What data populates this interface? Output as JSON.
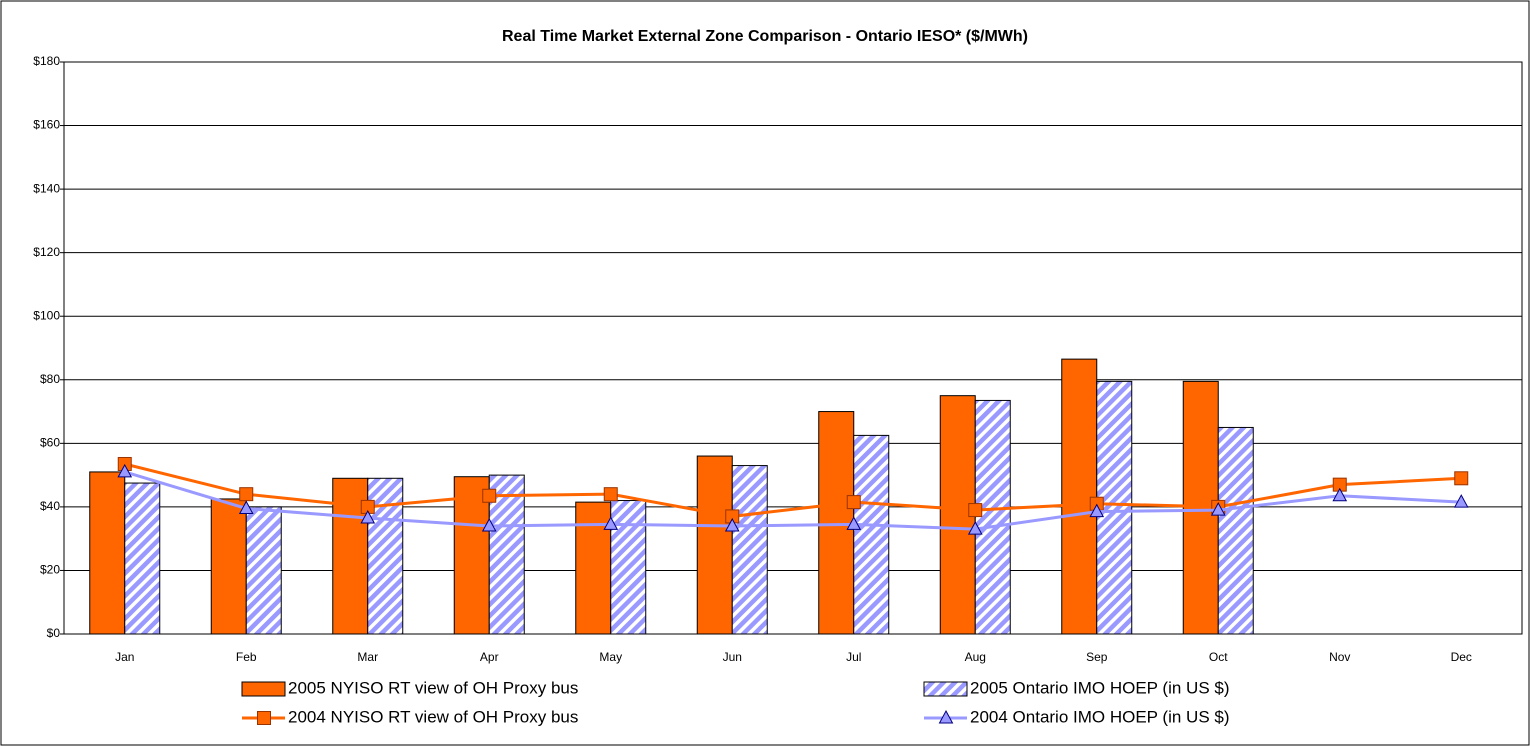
{
  "chart_data": {
    "type": "bar",
    "title": "Real Time Market External Zone Comparison - Ontario IESO* ($/MWh)",
    "categories": [
      "Jan",
      "Feb",
      "Mar",
      "Apr",
      "May",
      "Jun",
      "Jul",
      "Aug",
      "Sep",
      "Oct",
      "Nov",
      "Dec"
    ],
    "series": [
      {
        "name": "2005 NYISO RT view of OH Proxy bus",
        "type": "bar",
        "color": "#ff6600",
        "values": [
          51,
          42.5,
          49,
          49.5,
          41.5,
          56,
          70,
          75,
          86.5,
          79.5,
          null,
          null
        ]
      },
      {
        "name": "2005 Ontario IMO HOEP (in US $)",
        "type": "bar",
        "color": "#9999ff",
        "pattern": "hatch",
        "values": [
          47.5,
          40,
          49,
          50,
          42,
          53,
          62.5,
          73.5,
          79.5,
          65,
          null,
          null
        ]
      },
      {
        "name": "2004 NYISO RT view of OH Proxy bus",
        "type": "line",
        "marker": "square",
        "color": "#ff6600",
        "values": [
          53.5,
          44,
          40,
          43.5,
          44,
          37,
          41.5,
          39,
          41,
          40,
          47,
          49
        ]
      },
      {
        "name": "2004 Ontario IMO HOEP (in US $)",
        "type": "line",
        "marker": "triangle",
        "color": "#9999ff",
        "values": [
          51,
          39.5,
          36.5,
          34,
          34.5,
          34,
          34.5,
          33,
          38.5,
          39,
          43.5,
          41.5
        ]
      }
    ],
    "ylim": [
      0,
      180
    ],
    "yticks": [
      {
        "value": 0,
        "label": "$0"
      },
      {
        "value": 20,
        "label": "$20"
      },
      {
        "value": 40,
        "label": "$40"
      },
      {
        "value": 60,
        "label": "$60"
      },
      {
        "value": 80,
        "label": "$80"
      },
      {
        "value": 100,
        "label": "$100"
      },
      {
        "value": 120,
        "label": "$120"
      },
      {
        "value": 140,
        "label": "$140"
      },
      {
        "value": 160,
        "label": "$160"
      },
      {
        "value": 180,
        "label": "$180"
      }
    ],
    "grid": true
  }
}
